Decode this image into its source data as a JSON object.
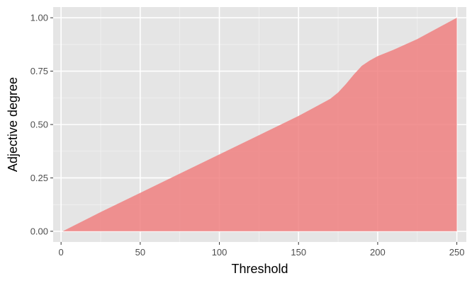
{
  "colors": {
    "panel": "#e5e5e5",
    "grid_major": "#ffffff",
    "grid_minor": "#f2f2f2",
    "fill": "#f08080",
    "tick": "#333333"
  },
  "chart_data": {
    "type": "area",
    "title": "",
    "xlabel": "Threshold",
    "ylabel": "Adjective degree",
    "xlim": [
      -5,
      256
    ],
    "ylim": [
      -0.05,
      1.05
    ],
    "x_ticks": [
      0,
      50,
      100,
      150,
      200,
      250
    ],
    "x_tick_labels": [
      "0",
      "50",
      "100",
      "150",
      "200",
      "250"
    ],
    "y_ticks": [
      0,
      0.25,
      0.5,
      0.75,
      1.0
    ],
    "y_tick_labels": [
      "0.00",
      "0.25",
      "0.50",
      "0.75",
      "1.00"
    ],
    "grid": true,
    "legend": "none",
    "fill_color": "#f08080",
    "fill_opacity": 0.85,
    "series": [
      {
        "x": [
          1,
          25,
          50,
          75,
          100,
          125,
          150,
          160,
          170,
          175,
          180,
          185,
          190,
          195,
          200,
          210,
          225,
          240,
          250
        ],
        "y": [
          0.0,
          0.09,
          0.18,
          0.27,
          0.36,
          0.45,
          0.54,
          0.58,
          0.62,
          0.65,
          0.69,
          0.735,
          0.775,
          0.8,
          0.82,
          0.85,
          0.9,
          0.96,
          1.0
        ]
      }
    ]
  }
}
